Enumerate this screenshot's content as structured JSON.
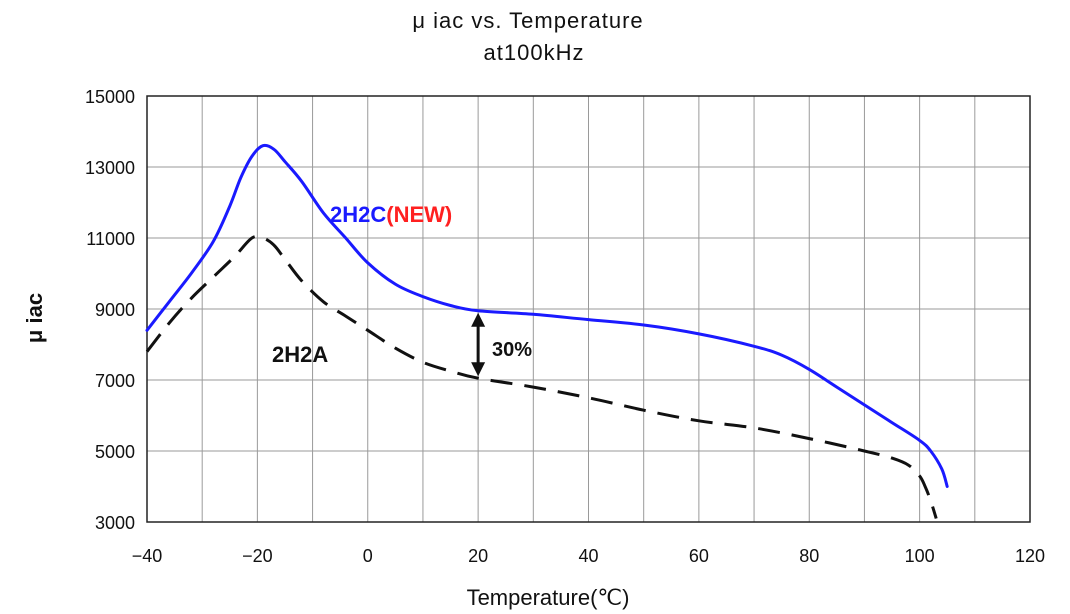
{
  "chart_data": {
    "type": "line",
    "title": "μ iac  vs. Temperature",
    "subtitle": "at100kHz",
    "xlabel": "Temperature(℃)",
    "ylabel": "μ iac",
    "xlim": [
      -40,
      120
    ],
    "ylim": [
      3000,
      15000
    ],
    "xticks": [
      -40,
      -20,
      0,
      20,
      40,
      60,
      80,
      100,
      120
    ],
    "yticks": [
      3000,
      5000,
      7000,
      9000,
      11000,
      13000,
      15000
    ],
    "xtick_labels": [
      "−40",
      "−20",
      "0",
      "20",
      "40",
      "60",
      "80",
      "100",
      "120"
    ],
    "ytick_labels": [
      "3000",
      "5000",
      "7000",
      "9000",
      "11000",
      "13000",
      "15000"
    ],
    "x_minor_grid_step": 10,
    "grid": true,
    "legend": "none",
    "series": [
      {
        "name": "2H2C",
        "name_suffix": "(NEW)",
        "color": "#1a1aff",
        "suffix_color": "#ff2020",
        "line_style": "solid",
        "points": [
          [
            -40,
            8400
          ],
          [
            -36,
            9200
          ],
          [
            -32,
            10000
          ],
          [
            -28,
            10900
          ],
          [
            -25,
            11900
          ],
          [
            -23,
            12700
          ],
          [
            -21,
            13300
          ],
          [
            -19,
            13600
          ],
          [
            -17,
            13500
          ],
          [
            -15,
            13150
          ],
          [
            -12,
            12600
          ],
          [
            -8,
            11700
          ],
          [
            -4,
            11000
          ],
          [
            0,
            10300
          ],
          [
            5,
            9700
          ],
          [
            10,
            9350
          ],
          [
            15,
            9100
          ],
          [
            20,
            8950
          ],
          [
            30,
            8850
          ],
          [
            40,
            8700
          ],
          [
            50,
            8550
          ],
          [
            60,
            8300
          ],
          [
            70,
            7950
          ],
          [
            75,
            7700
          ],
          [
            80,
            7300
          ],
          [
            85,
            6800
          ],
          [
            90,
            6300
          ],
          [
            95,
            5800
          ],
          [
            100,
            5300
          ],
          [
            102,
            5000
          ],
          [
            104,
            4500
          ],
          [
            105,
            4000
          ]
        ]
      },
      {
        "name": "2H2A",
        "color": "#111111",
        "line_style": "dashed",
        "points": [
          [
            -40,
            7800
          ],
          [
            -36,
            8600
          ],
          [
            -32,
            9300
          ],
          [
            -28,
            9900
          ],
          [
            -24,
            10500
          ],
          [
            -21,
            11000
          ],
          [
            -19,
            11000
          ],
          [
            -17,
            10800
          ],
          [
            -15,
            10400
          ],
          [
            -12,
            9800
          ],
          [
            -8,
            9200
          ],
          [
            -4,
            8800
          ],
          [
            0,
            8400
          ],
          [
            5,
            7900
          ],
          [
            10,
            7500
          ],
          [
            15,
            7250
          ],
          [
            20,
            7050
          ],
          [
            30,
            6800
          ],
          [
            40,
            6500
          ],
          [
            50,
            6150
          ],
          [
            60,
            5850
          ],
          [
            70,
            5650
          ],
          [
            80,
            5350
          ],
          [
            90,
            5000
          ],
          [
            95,
            4800
          ],
          [
            98,
            4600
          ],
          [
            100,
            4300
          ],
          [
            101,
            4000
          ],
          [
            102,
            3600
          ],
          [
            103,
            3100
          ]
        ]
      }
    ],
    "annotations": [
      {
        "text": "30%",
        "type": "double-arrow",
        "x": 20,
        "y_from": 7050,
        "y_to": 8950
      }
    ]
  }
}
